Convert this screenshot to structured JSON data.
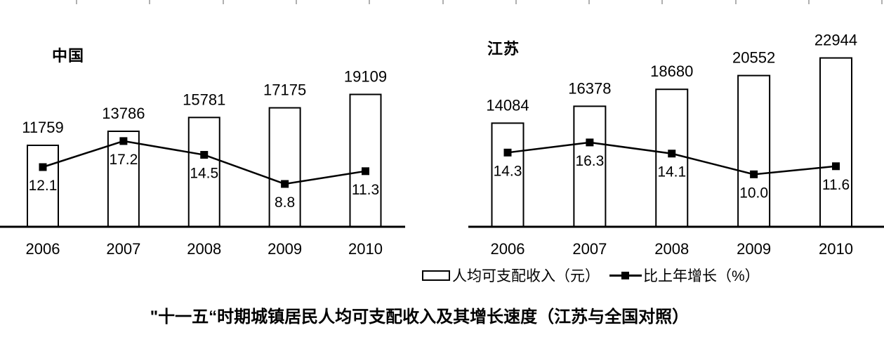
{
  "figure_title": "\"十一五“时期城镇居民人均可支配收入及其增长速度（江苏与全国对照）",
  "legend": {
    "position": "bottom",
    "bar_label": "人均可支配收入（元）",
    "line_label": "比上年增长（%）"
  },
  "colors": {
    "bar_fill": "#ffffff",
    "stroke": "#000000",
    "text": "#000000",
    "top_tick": "#b0b0b0"
  },
  "chart_data": [
    {
      "type": "bar",
      "title": "中国",
      "categories": [
        "2006",
        "2007",
        "2008",
        "2009",
        "2010"
      ],
      "series": [
        {
          "name": "人均可支配收入（元）",
          "type": "bar",
          "values": [
            11759,
            13786,
            15781,
            17175,
            19109
          ]
        },
        {
          "name": "比上年增长（%）",
          "type": "line",
          "values": [
            12.1,
            17.2,
            14.5,
            8.8,
            11.3
          ]
        }
      ],
      "grid": false,
      "data_labels": true,
      "y_axis_visible": false
    },
    {
      "type": "bar",
      "title": "江苏",
      "categories": [
        "2006",
        "2007",
        "2008",
        "2009",
        "2010"
      ],
      "series": [
        {
          "name": "人均可支配收入（元）",
          "type": "bar",
          "values": [
            14084,
            16378,
            18680,
            20552,
            22944
          ]
        },
        {
          "name": "比上年增长（%）",
          "type": "line",
          "values": [
            14.3,
            16.3,
            14.1,
            10.0,
            11.6
          ]
        }
      ],
      "grid": false,
      "data_labels": true,
      "y_axis_visible": false
    }
  ]
}
